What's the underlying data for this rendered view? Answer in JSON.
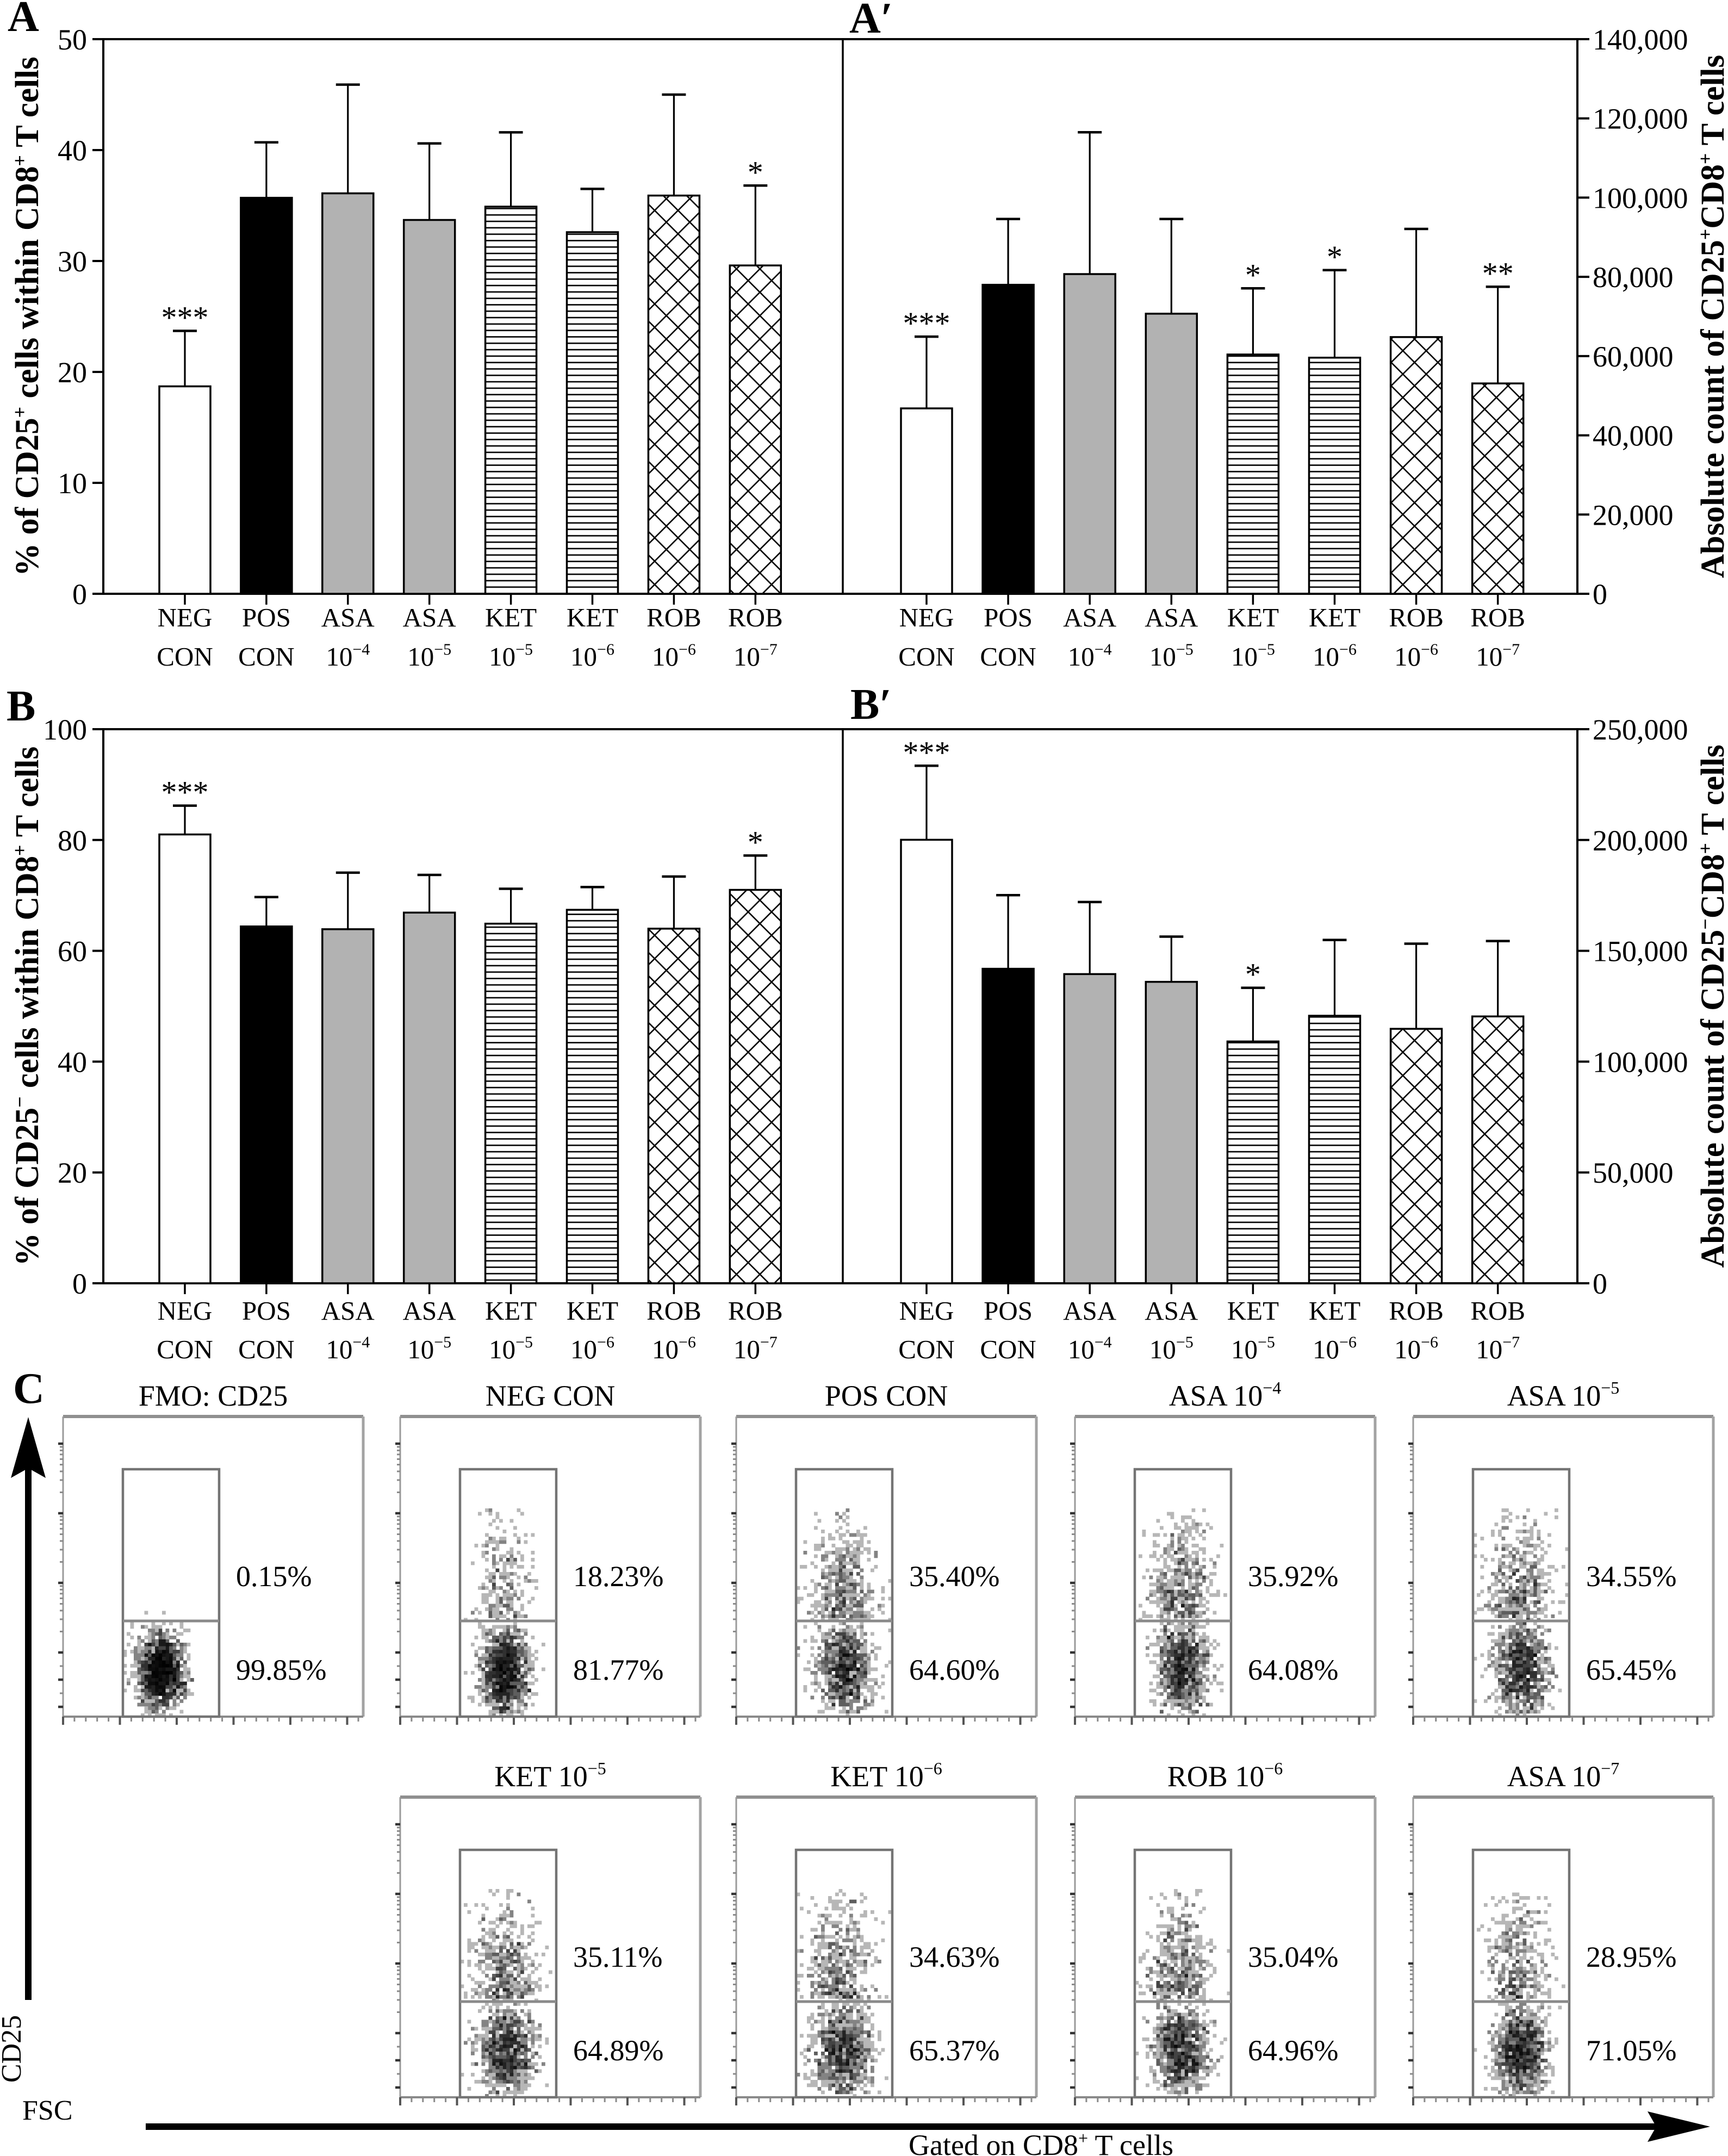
{
  "chart_data": [
    {
      "id": "A",
      "panel_label": "A",
      "type": "bar",
      "title": "",
      "xlabel": "",
      "ylabel": "% of CD25+ cells within CD8+ T cells",
      "ylabel_parts": [
        {
          "text": "% of CD25",
          "sup": false
        },
        {
          "text": "+",
          "sup": true
        },
        {
          "text": " cells within CD8",
          "sup": false
        },
        {
          "text": "+",
          "sup": true
        },
        {
          "text": " T cells",
          "sup": false
        }
      ],
      "yaxis_side": "left",
      "ylim": [
        0,
        50
      ],
      "yticks": [
        0,
        10,
        20,
        30,
        40,
        50
      ],
      "ytick_labels": [
        "0",
        "10",
        "20",
        "30",
        "40",
        "50"
      ],
      "grid": false,
      "legend": "none",
      "categories": [
        "NEG CON",
        "POS CON",
        "ASA 10−4",
        "ASA 10−5",
        "KET 10−5",
        "KET 10−6",
        "ROB 10−6",
        "ROB 10−7"
      ],
      "category_labels": [
        {
          "line1": "NEG",
          "line2": "CON",
          "sup": ""
        },
        {
          "line1": "POS",
          "line2": "CON",
          "sup": ""
        },
        {
          "line1": "ASA",
          "line2": "10",
          "sup": "−4"
        },
        {
          "line1": "ASA",
          "line2": "10",
          "sup": "−5"
        },
        {
          "line1": "KET",
          "line2": "10",
          "sup": "−5"
        },
        {
          "line1": "KET",
          "line2": "10",
          "sup": "−6"
        },
        {
          "line1": "ROB",
          "line2": "10",
          "sup": "−6"
        },
        {
          "line1": "ROB",
          "line2": "10",
          "sup": "−7"
        }
      ],
      "values": [
        18.7,
        35.7,
        36.1,
        33.7,
        34.9,
        32.6,
        35.9,
        29.6
      ],
      "errors": [
        5.0,
        5.0,
        9.8,
        6.9,
        6.7,
        3.9,
        9.1,
        7.2
      ],
      "significance": [
        "***",
        "",
        "",
        "",
        "",
        "",
        "",
        "*"
      ],
      "bar_styles": [
        "white",
        "black",
        "gray",
        "gray",
        "hlines",
        "hlines",
        "crosshatch",
        "crosshatch"
      ]
    },
    {
      "id": "A′",
      "panel_label": "A′",
      "type": "bar",
      "title": "",
      "xlabel": "",
      "ylabel": "Absolute count of CD25+CD8+ T cells",
      "ylabel_parts": [
        {
          "text": "Absolute count of CD25",
          "sup": false
        },
        {
          "text": "+",
          "sup": true
        },
        {
          "text": "CD8",
          "sup": false
        },
        {
          "text": "+",
          "sup": true
        },
        {
          "text": " T cells",
          "sup": false
        }
      ],
      "yaxis_side": "right",
      "ylim": [
        0,
        140000
      ],
      "yticks": [
        0,
        20000,
        40000,
        60000,
        80000,
        100000,
        120000,
        140000
      ],
      "ytick_labels": [
        "0",
        "20,000",
        "40,000",
        "60,000",
        "80,000",
        "100,000",
        "120,000",
        "140,000"
      ],
      "grid": false,
      "legend": "none",
      "categories": [
        "NEG CON",
        "POS CON",
        "ASA 10−4",
        "ASA 10−5",
        "KET 10−5",
        "KET 10−6",
        "ROB 10−6",
        "ROB 10−7"
      ],
      "category_labels": [
        {
          "line1": "NEG",
          "line2": "CON",
          "sup": ""
        },
        {
          "line1": "POS",
          "line2": "CON",
          "sup": ""
        },
        {
          "line1": "ASA",
          "line2": "10",
          "sup": "−4"
        },
        {
          "line1": "ASA",
          "line2": "10",
          "sup": "−5"
        },
        {
          "line1": "KET",
          "line2": "10",
          "sup": "−5"
        },
        {
          "line1": "KET",
          "line2": "10",
          "sup": "−6"
        },
        {
          "line1": "ROB",
          "line2": "10",
          "sup": "−6"
        },
        {
          "line1": "ROB",
          "line2": "10",
          "sup": "−7"
        }
      ],
      "values": [
        46800,
        78000,
        80700,
        70700,
        60400,
        59600,
        64800,
        53100
      ],
      "errors": [
        18100,
        16600,
        35800,
        23900,
        16700,
        22100,
        27300,
        24400
      ],
      "significance": [
        "***",
        "",
        "",
        "",
        "*",
        "*",
        "",
        "**"
      ],
      "bar_styles": [
        "white",
        "black",
        "gray",
        "gray",
        "hlines",
        "hlines",
        "crosshatch",
        "crosshatch"
      ]
    },
    {
      "id": "B",
      "panel_label": "B",
      "type": "bar",
      "title": "",
      "xlabel": "",
      "ylabel": "% of CD25− cells within CD8+ T cells",
      "ylabel_parts": [
        {
          "text": "% of CD25",
          "sup": false
        },
        {
          "text": "−",
          "sup": true
        },
        {
          "text": " cells within CD8",
          "sup": false
        },
        {
          "text": "+",
          "sup": true
        },
        {
          "text": " T cells",
          "sup": false
        }
      ],
      "yaxis_side": "left",
      "ylim": [
        0,
        100
      ],
      "yticks": [
        0,
        20,
        40,
        60,
        80,
        100
      ],
      "ytick_labels": [
        "0",
        "20",
        "40",
        "60",
        "80",
        "100"
      ],
      "grid": false,
      "legend": "none",
      "categories": [
        "NEG CON",
        "POS CON",
        "ASA 10−4",
        "ASA 10−5",
        "KET 10−5",
        "KET 10−6",
        "ROB 10−6",
        "ROB 10−7"
      ],
      "category_labels": [
        {
          "line1": "NEG",
          "line2": "CON",
          "sup": ""
        },
        {
          "line1": "POS",
          "line2": "CON",
          "sup": ""
        },
        {
          "line1": "ASA",
          "line2": "10",
          "sup": "−4"
        },
        {
          "line1": "ASA",
          "line2": "10",
          "sup": "−5"
        },
        {
          "line1": "KET",
          "line2": "10",
          "sup": "−5"
        },
        {
          "line1": "KET",
          "line2": "10",
          "sup": "−6"
        },
        {
          "line1": "ROB",
          "line2": "10",
          "sup": "−6"
        },
        {
          "line1": "ROB",
          "line2": "10",
          "sup": "−7"
        }
      ],
      "values": [
        81.0,
        64.4,
        63.9,
        66.9,
        64.9,
        67.4,
        64.0,
        71.0
      ],
      "errors": [
        5.2,
        5.3,
        10.2,
        6.8,
        6.3,
        4.1,
        9.4,
        6.2
      ],
      "significance": [
        "***",
        "",
        "",
        "",
        "",
        "",
        "",
        "*"
      ],
      "bar_styles": [
        "white",
        "black",
        "gray",
        "gray",
        "hlines",
        "hlines",
        "crosshatch",
        "crosshatch"
      ]
    },
    {
      "id": "B′",
      "panel_label": "B′",
      "type": "bar",
      "title": "",
      "xlabel": "",
      "ylabel": "Absolute count of CD25−CD8+ T cells",
      "ylabel_parts": [
        {
          "text": "Absolute count of CD25",
          "sup": false
        },
        {
          "text": "−",
          "sup": true
        },
        {
          "text": "CD8",
          "sup": false
        },
        {
          "text": "+",
          "sup": true
        },
        {
          "text": " T cells",
          "sup": false
        }
      ],
      "yaxis_side": "right",
      "ylim": [
        0,
        250000
      ],
      "yticks": [
        0,
        50000,
        100000,
        150000,
        200000,
        250000
      ],
      "ytick_labels": [
        "0",
        "50,000",
        "100,000",
        "150,000",
        "200,000",
        "250,000"
      ],
      "grid": false,
      "legend": "none",
      "categories": [
        "NEG CON",
        "POS CON",
        "ASA 10−4",
        "ASA 10−5",
        "KET 10−5",
        "KET 10−6",
        "ROB 10−6",
        "ROB 10−7"
      ],
      "category_labels": [
        {
          "line1": "NEG",
          "line2": "CON",
          "sup": ""
        },
        {
          "line1": "POS",
          "line2": "CON",
          "sup": ""
        },
        {
          "line1": "ASA",
          "line2": "10",
          "sup": "−4"
        },
        {
          "line1": "ASA",
          "line2": "10",
          "sup": "−5"
        },
        {
          "line1": "KET",
          "line2": "10",
          "sup": "−5"
        },
        {
          "line1": "KET",
          "line2": "10",
          "sup": "−6"
        },
        {
          "line1": "ROB",
          "line2": "10",
          "sup": "−6"
        },
        {
          "line1": "ROB",
          "line2": "10",
          "sup": "−7"
        }
      ],
      "values": [
        200100,
        141900,
        139500,
        136000,
        109100,
        120700,
        114800,
        120400
      ],
      "errors": [
        33400,
        33200,
        32500,
        20400,
        24200,
        34200,
        38400,
        34000
      ],
      "significance": [
        "***",
        "",
        "",
        "",
        "*",
        "",
        "",
        ""
      ],
      "bar_styles": [
        "white",
        "black",
        "gray",
        "gray",
        "hlines",
        "hlines",
        "crosshatch",
        "crosshatch"
      ]
    },
    {
      "id": "C",
      "panel_label": "C",
      "type": "scatter",
      "subtype": "flow cytometry density dot plots with gates",
      "xlabel": "FSC",
      "ylabel": "CD25",
      "footer": "Gated on CD8+ T cells",
      "footer_parts": [
        {
          "text": "Gated on CD8",
          "sup": false
        },
        {
          "text": "+",
          "sup": true
        },
        {
          "text": " T cells",
          "sup": false
        }
      ],
      "plots": [
        {
          "title": "FMO: CD25",
          "title_sup": "",
          "upper_pct": 0.15,
          "lower_pct": 99.85,
          "upper_label": "0.15%",
          "lower_label": "99.85%"
        },
        {
          "title": "NEG CON",
          "title_sup": "",
          "upper_pct": 18.23,
          "lower_pct": 81.77,
          "upper_label": "18.23%",
          "lower_label": "81.77%"
        },
        {
          "title": "POS CON",
          "title_sup": "",
          "upper_pct": 35.4,
          "lower_pct": 64.6,
          "upper_label": "35.40%",
          "lower_label": "64.60%"
        },
        {
          "title": "ASA 10",
          "title_sup": "−4",
          "upper_pct": 35.92,
          "lower_pct": 64.08,
          "upper_label": "35.92%",
          "lower_label": "64.08%"
        },
        {
          "title": "ASA 10",
          "title_sup": "−5",
          "upper_pct": 34.55,
          "lower_pct": 65.45,
          "upper_label": "34.55%",
          "lower_label": "65.45%"
        },
        {
          "title": "KET 10",
          "title_sup": "−5",
          "upper_pct": 35.11,
          "lower_pct": 64.89,
          "upper_label": "35.11%",
          "lower_label": "64.89%"
        },
        {
          "title": "KET 10",
          "title_sup": "−6",
          "upper_pct": 34.63,
          "lower_pct": 65.37,
          "upper_label": "34.63%",
          "lower_label": "65.37%"
        },
        {
          "title": "ROB 10",
          "title_sup": "−6",
          "upper_pct": 35.04,
          "lower_pct": 64.96,
          "upper_label": "35.04%",
          "lower_label": "64.96%"
        },
        {
          "title": "ASA 10",
          "title_sup": "−7",
          "upper_pct": 28.95,
          "lower_pct": 71.05,
          "upper_label": "28.95%",
          "lower_label": "71.05%"
        }
      ]
    }
  ],
  "bar_style_colors": {
    "white": "#ffffff",
    "black": "#000000",
    "gray": "#b2b2b2",
    "hlines": "#000000",
    "crosshatch": "#000000",
    "outline": "#000000"
  },
  "flow_colors": {
    "frame": "#9a9a9a",
    "gate": "#747474",
    "events": "#000000"
  }
}
